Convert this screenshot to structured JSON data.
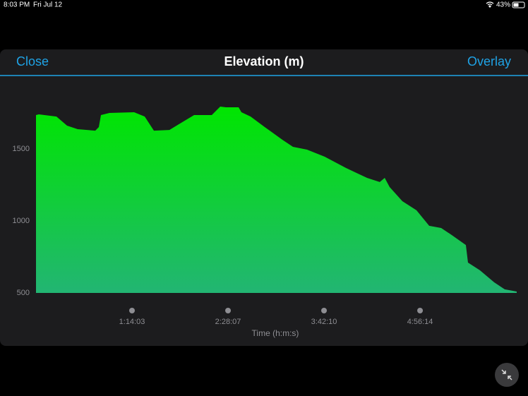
{
  "status_bar": {
    "time": "8:03 PM",
    "date": "Fri Jul 12",
    "battery": "43%"
  },
  "nav": {
    "left": "Close",
    "title": "Elevation (m)",
    "right": "Overlay"
  },
  "chart_data": {
    "type": "area",
    "color": "#00e600",
    "gradient_end": "#22b573",
    "xlabel": "Time (h:m:s)",
    "x": [
      0,
      131,
      947,
      1437,
      1927,
      2744,
      2908,
      3006,
      3398,
      4541,
      5031,
      5456,
      6175,
      6828,
      7318,
      8135,
      8527,
      8788,
      9376,
      9507,
      9932,
      10585,
      11402,
      11892,
      12545,
      13362,
      14342,
      15322,
      15910,
      16139,
      16367,
      16955,
      17609,
      18197,
      18752,
      19242,
      19895,
      19993,
      20549,
      21202,
      21692,
      22248
    ],
    "values": [
      1735,
      1740,
      1725,
      1662,
      1637,
      1627,
      1652,
      1735,
      1750,
      1755,
      1725,
      1627,
      1632,
      1691,
      1735,
      1735,
      1794,
      1789,
      1789,
      1755,
      1725,
      1652,
      1564,
      1515,
      1495,
      1446,
      1368,
      1299,
      1270,
      1299,
      1235,
      1137,
      1074,
      966,
      951,
      902,
      833,
      711,
      657,
      574,
      525,
      510
    ],
    "xlim": [
      0,
      22248
    ],
    "ylim": [
      500,
      1900
    ],
    "xticks": [
      {
        "value": 4443,
        "label": "1:14:03"
      },
      {
        "value": 8887,
        "label": "2:28:07"
      },
      {
        "value": 13330,
        "label": "3:42:10"
      },
      {
        "value": 17774,
        "label": "4:56:14"
      }
    ],
    "yticks": [
      500,
      1000,
      1500
    ]
  }
}
